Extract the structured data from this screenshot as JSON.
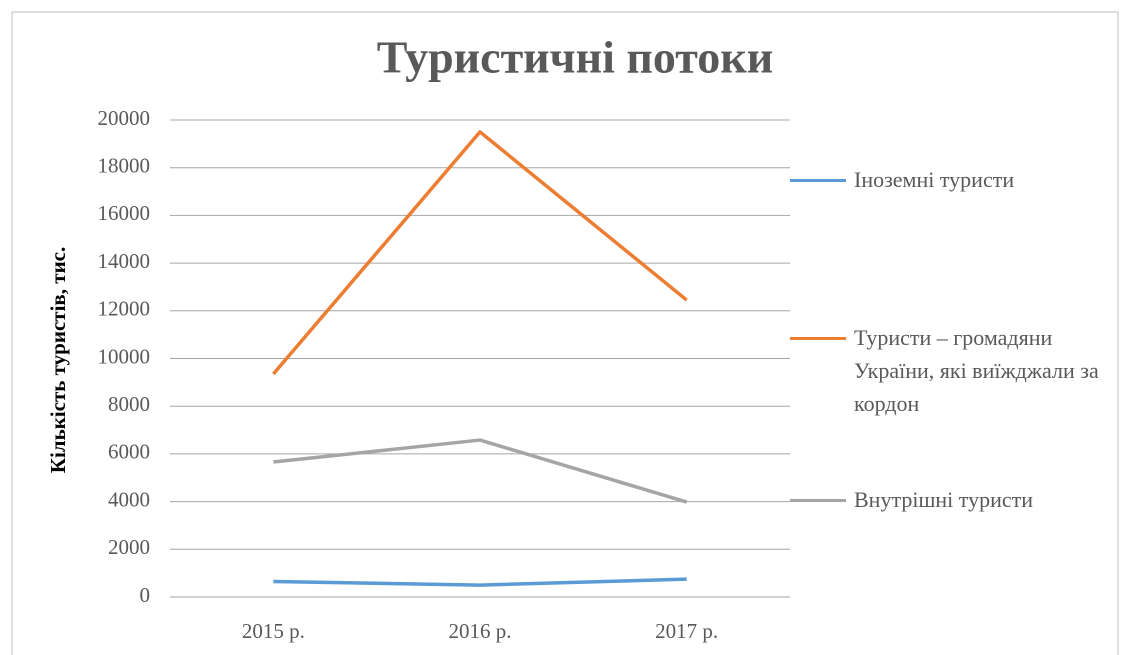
{
  "chart_data": {
    "type": "line",
    "title": "Туристичні потоки",
    "y_label": "Кількість туристів, тис.",
    "categories": [
      "2015 р.",
      "2016 р.",
      "2017 р."
    ],
    "series": [
      {
        "name": "Іноземні туристи",
        "color": "#5b9bd5",
        "values": [
          650,
          500,
          750
        ]
      },
      {
        "name": "Туристи – громадяни України, які виїжджали за кордон",
        "color": "#ed7d31",
        "values": [
          9350,
          19500,
          12450
        ]
      },
      {
        "name": "Внутрішні туристи",
        "color": "#a5a5a5",
        "values": [
          5660,
          6580,
          3980
        ]
      }
    ],
    "ylim": [
      0,
      20000
    ],
    "yticks": [
      0,
      2000,
      4000,
      6000,
      8000,
      10000,
      12000,
      14000,
      16000,
      18000,
      20000
    ],
    "grid": true,
    "legend": "right"
  }
}
